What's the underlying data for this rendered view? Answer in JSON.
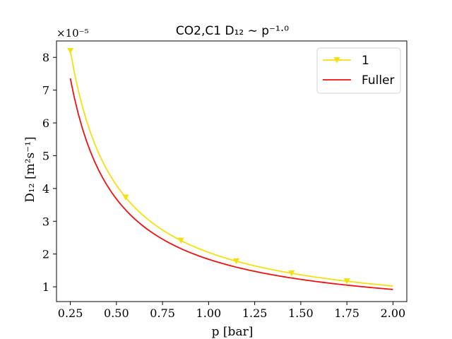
{
  "chart_data": {
    "type": "line",
    "title": "CO2,C1 D₁₂ ∼ p⁻¹·⁰",
    "xlabel": "p [bar]",
    "ylabel": "D₁₂ [m²s⁻¹]",
    "y_offset_label": "×10⁻⁵",
    "xlim": [
      0.175,
      2.075
    ],
    "ylim": [
      0.55,
      8.5
    ],
    "xticks": [
      0.25,
      0.5,
      0.75,
      1.0,
      1.25,
      1.5,
      1.75,
      2.0
    ],
    "xtick_labels": [
      "0.25",
      "0.50",
      "0.75",
      "1.00",
      "1.25",
      "1.50",
      "1.75",
      "2.00"
    ],
    "yticks": [
      1,
      2,
      3,
      4,
      5,
      6,
      7,
      8
    ],
    "ytick_labels": [
      "1",
      "2",
      "3",
      "4",
      "5",
      "6",
      "7",
      "8"
    ],
    "legend_position": "top-right",
    "series": [
      {
        "name": "1",
        "color": "#f2e10f",
        "marker": "triangle-down",
        "coefficient": 2.05,
        "marker_x": [
          0.25,
          0.55,
          0.85,
          1.15,
          1.45,
          1.75
        ]
      },
      {
        "name": "Fuller",
        "color": "#ee1111",
        "marker": "none",
        "coefficient": 1.84
      }
    ],
    "x_range": [
      0.25,
      2.0
    ],
    "note_model": "y = coefficient / x"
  }
}
